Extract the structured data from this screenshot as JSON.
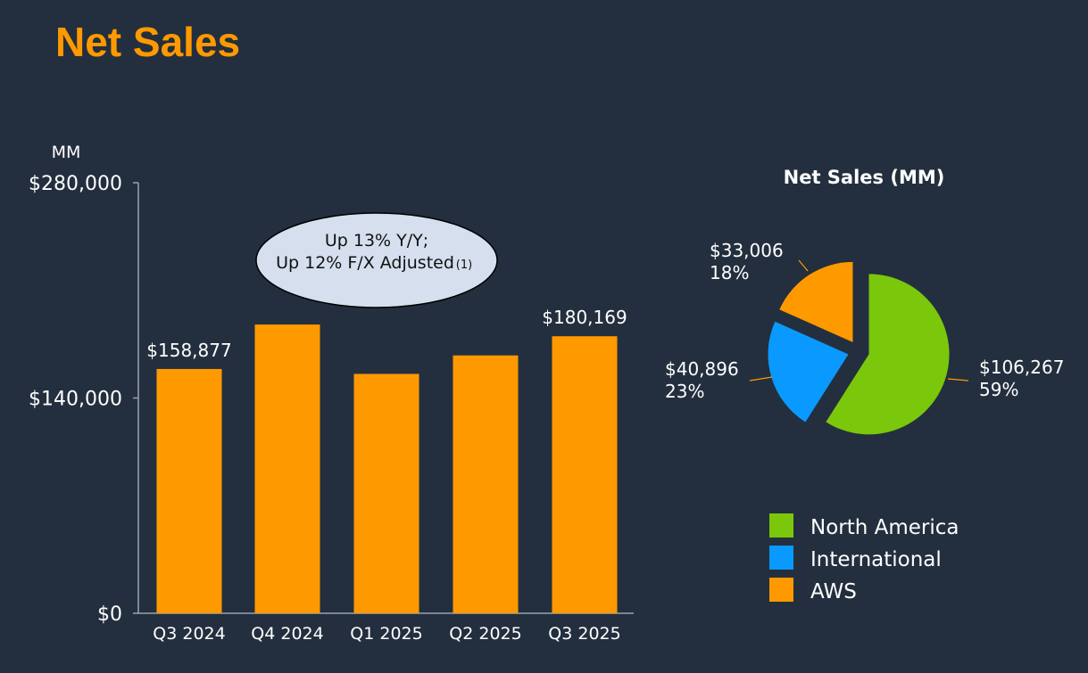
{
  "title": "Net Sales",
  "chart_data": [
    {
      "type": "bar",
      "ylabel": "MM",
      "categories": [
        "Q3 2024",
        "Q4 2024",
        "Q1 2025",
        "Q2 2025",
        "Q3 2025"
      ],
      "values": [
        158877,
        187792,
        155667,
        167702,
        180169
      ],
      "data_labels": [
        "$158,877",
        "",
        "",
        "",
        "$180,169"
      ],
      "yticks": [
        0,
        140000,
        280000
      ],
      "ytick_labels": [
        "$0",
        "$140,000",
        "$280,000"
      ],
      "ylim": [
        0,
        280000
      ],
      "color": "#ff9900",
      "grid": false,
      "annotation": {
        "line1": "Up 13% Y/Y;",
        "line2": "Up 12% F/X Adjusted",
        "footnote": "(1)"
      }
    },
    {
      "type": "pie",
      "title": "Net Sales (MM)",
      "slices": [
        {
          "name": "North America",
          "value": 106267,
          "value_label": "$106,267",
          "percent_label": "59%",
          "color": "#7ac70c"
        },
        {
          "name": "International",
          "value": 40896,
          "value_label": "$40,896",
          "percent_label": "23%",
          "color": "#0a99ff"
        },
        {
          "name": "AWS",
          "value": 33006,
          "value_label": "$33,006",
          "percent_label": "18%",
          "color": "#ff9900"
        }
      ],
      "legend_position": "bottom"
    }
  ]
}
